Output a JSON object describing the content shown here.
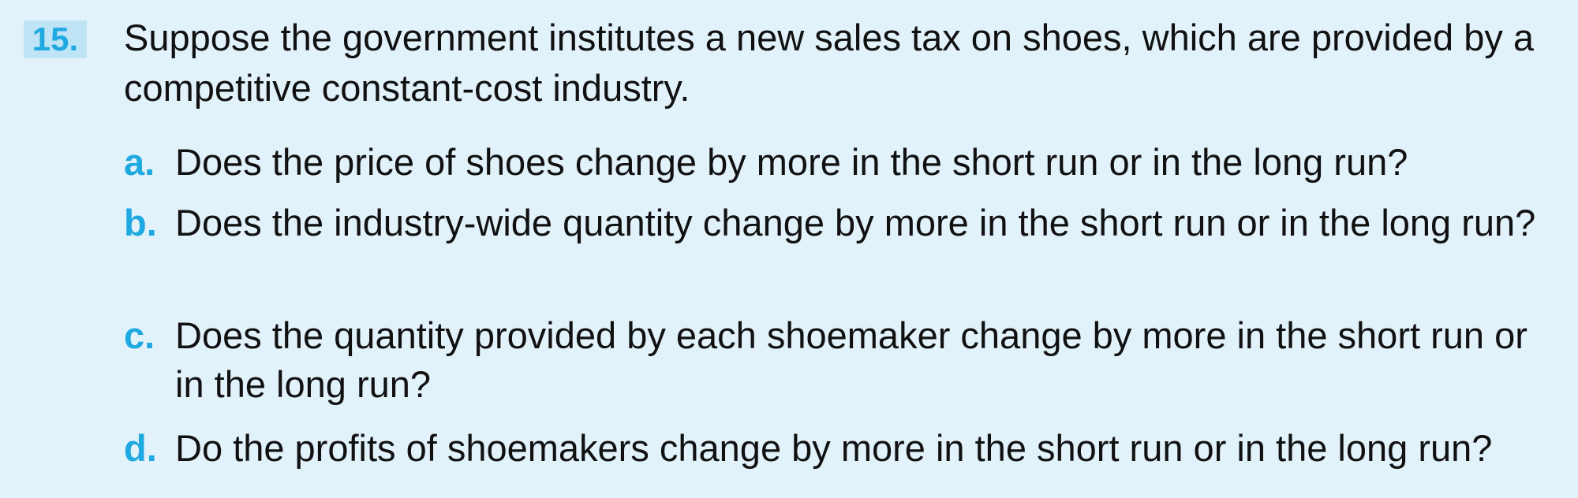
{
  "question": {
    "number": "15.",
    "stem": "Suppose the government institutes a new sales tax on shoes, which are provided by a competitive constant-cost industry.",
    "parts": [
      {
        "label": "a.",
        "text": "Does the price of shoes change by more in the short run or in the long run?"
      },
      {
        "label": "b.",
        "text": "Does the industry-wide quantity change by more in the short run or in the long run?"
      },
      {
        "label": "c.",
        "text": "Does the quantity provided by each shoemaker change by more in the short run or in the long run?"
      },
      {
        "label": "d.",
        "text": "Do the profits of shoemakers change by more in the short run or in the long run?"
      }
    ]
  },
  "colors": {
    "background": "#e2f2fb",
    "accent": "#1fa9e1",
    "number_highlight": "#bfe4f6",
    "text": "#111111"
  }
}
